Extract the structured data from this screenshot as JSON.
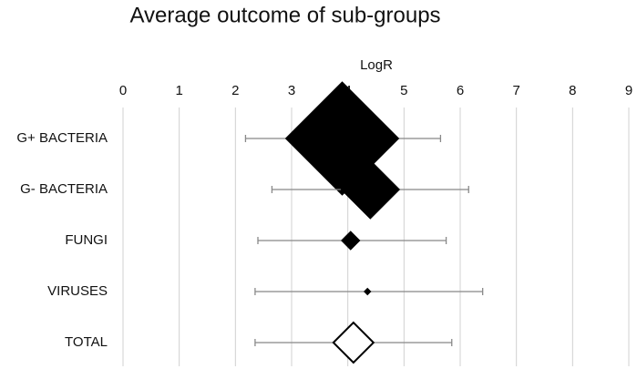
{
  "chart_data": {
    "type": "forest",
    "title": "Average outcome of sub-groups",
    "x_label": "LogR",
    "categories": [
      "G+ BACTERIA",
      "G- BACTERIA",
      "FUNGI",
      "VIRUSES",
      "TOTAL"
    ],
    "mean": [
      3.9,
      4.4,
      4.05,
      4.35,
      4.1
    ],
    "lower": [
      2.18,
      2.65,
      2.4,
      2.35,
      2.35
    ],
    "upper": [
      5.65,
      6.15,
      5.75,
      6.4,
      5.85
    ],
    "weights": [
      77,
      20.5,
      2,
      0.25,
      100
    ],
    "summary_row": 4,
    "color": "#000000",
    "whisker_color": "#888888",
    "xlim": [
      0,
      9
    ],
    "xticks": [
      0,
      1,
      2,
      3,
      4,
      5,
      6,
      7,
      8,
      9
    ],
    "grid": true
  }
}
